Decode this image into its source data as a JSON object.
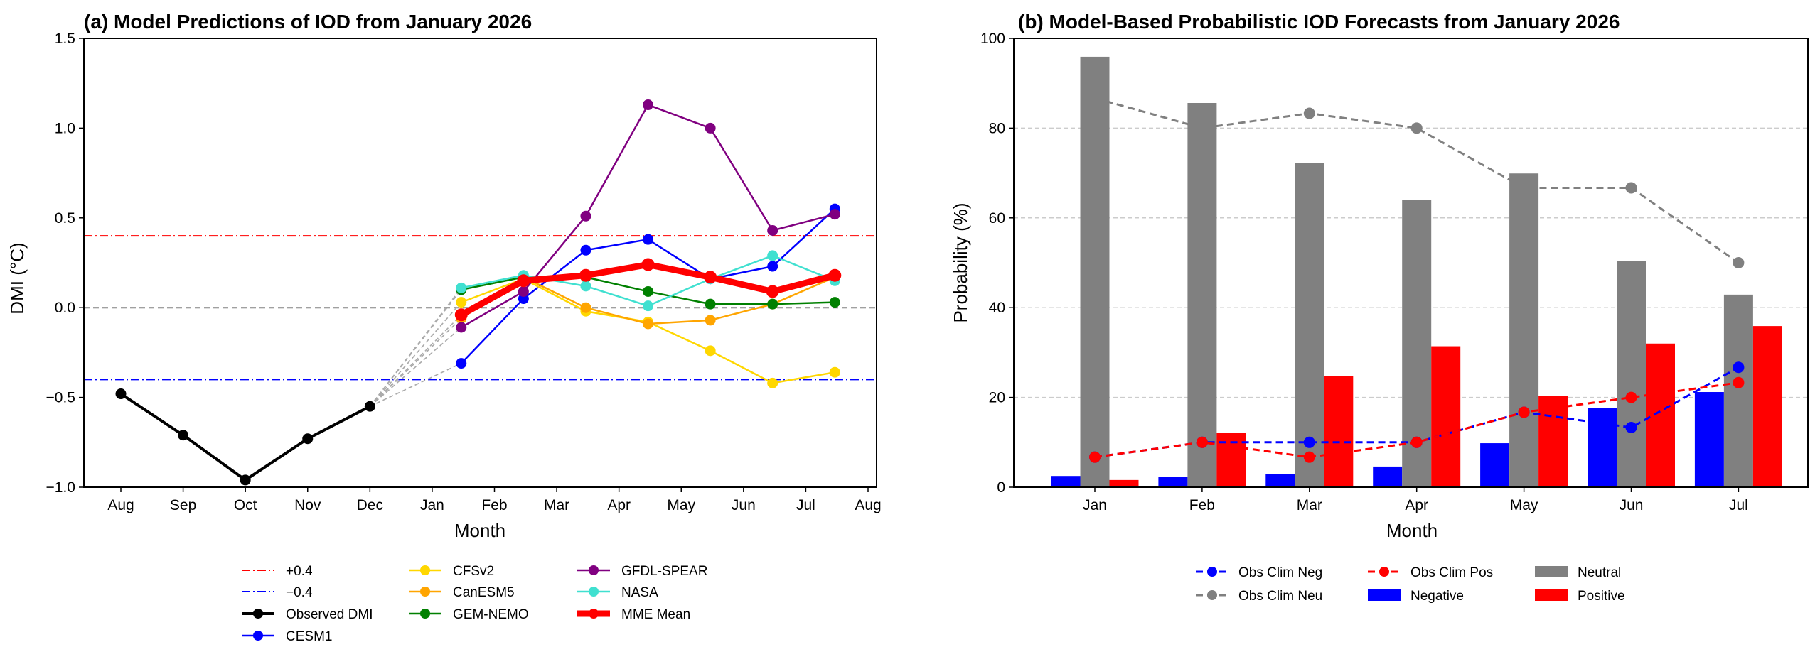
{
  "chart_data": [
    {
      "type": "line",
      "title": "(a) Model Predictions of IOD from January 2026",
      "xlabel": "Month",
      "ylabel": "DMI (°C)",
      "ylim": [
        -1.0,
        1.5
      ],
      "yticks": [
        "−1.0",
        "−0.5",
        "0.0",
        "0.5",
        "1.0",
        "1.5"
      ],
      "ytick_values": [
        -1.0,
        -0.5,
        0.0,
        0.5,
        1.0,
        1.5
      ],
      "xlim": [
        "2025-07-15",
        "2026-08-15"
      ],
      "xticks": [
        "Aug",
        "Sep",
        "Oct",
        "Nov",
        "Dec",
        "Jan",
        "Feb",
        "Mar",
        "Apr",
        "May",
        "Jun",
        "Jul",
        "Aug"
      ],
      "xtick_dates": [
        "2025-08-01",
        "2025-09-01",
        "2025-10-01",
        "2025-11-01",
        "2025-12-01",
        "2026-01-01",
        "2026-02-01",
        "2026-03-01",
        "2026-04-01",
        "2026-05-01",
        "2026-06-01",
        "2026-07-01",
        "2026-08-01"
      ],
      "grid": false,
      "legend_placement": "bottom",
      "reference_lines": [
        {
          "name": "+0.4",
          "y": 0.4,
          "color": "#FF0000",
          "style": "dashdot"
        },
        {
          "name": "−0.4",
          "y": -0.4,
          "color": "#0000FF",
          "style": "dashdot"
        },
        {
          "name": "",
          "y": 0.0,
          "color": "#808080",
          "style": "dashed"
        }
      ],
      "observed": {
        "name": "Observed DMI",
        "color": "#000000",
        "x": [
          "2025-08-01",
          "2025-09-01",
          "2025-10-01",
          "2025-11-01",
          "2025-12-01"
        ],
        "y": [
          -0.48,
          -0.71,
          -0.96,
          -0.73,
          -0.55
        ]
      },
      "forecast_x": [
        "2026-01-15",
        "2026-02-15",
        "2026-03-15",
        "2026-04-15",
        "2026-05-15",
        "2026-06-15",
        "2026-07-15"
      ],
      "series": [
        {
          "name": "CESM1",
          "color": "#0000FF",
          "values": [
            -0.31,
            0.05,
            0.32,
            0.38,
            0.16,
            0.23,
            0.55
          ]
        },
        {
          "name": "CFSv2",
          "color": "#FFD700",
          "values": [
            0.03,
            0.16,
            -0.02,
            -0.08,
            -0.24,
            -0.42,
            -0.36
          ]
        },
        {
          "name": "CanESM5",
          "color": "#FFA500",
          "values": [
            -0.06,
            0.17,
            0.0,
            -0.09,
            -0.07,
            0.02,
            0.17
          ]
        },
        {
          "name": "GEM-NEMO",
          "color": "#008000",
          "values": [
            0.1,
            0.17,
            0.17,
            0.09,
            0.02,
            0.02,
            0.03
          ]
        },
        {
          "name": "GFDL-SPEAR",
          "color": "#800080",
          "values": [
            -0.11,
            0.09,
            0.51,
            1.13,
            1.0,
            0.43,
            0.52
          ]
        },
        {
          "name": "NASA",
          "color": "#40E0D0",
          "values": [
            0.11,
            0.18,
            0.12,
            0.01,
            0.16,
            0.29,
            0.15
          ]
        },
        {
          "name": "MME Mean",
          "color": "#FF0000",
          "values": [
            -0.04,
            0.15,
            0.18,
            0.24,
            0.17,
            0.09,
            0.18
          ]
        }
      ]
    },
    {
      "type": "bar",
      "title": "(b) Model-Based Probabilistic IOD Forecasts from January 2026",
      "xlabel": "Month",
      "ylabel": "Probability (%)",
      "ylim": [
        0,
        100
      ],
      "yticks": [
        "0",
        "20",
        "40",
        "60",
        "80",
        "100"
      ],
      "ytick_values": [
        0,
        20,
        40,
        60,
        80,
        100
      ],
      "grid": "horizontal dashed",
      "legend_placement": "bottom",
      "categories": [
        "Jan",
        "Feb",
        "Mar",
        "Apr",
        "May",
        "Jun",
        "Jul"
      ],
      "series": [
        {
          "name": "Negative",
          "color": "#0000FF",
          "values": [
            2.5,
            2.3,
            3.0,
            4.6,
            9.8,
            17.6,
            21.2
          ]
        },
        {
          "name": "Neutral",
          "color": "#808080",
          "values": [
            95.9,
            85.6,
            72.2,
            64.0,
            69.9,
            50.4,
            42.9
          ]
        },
        {
          "name": "Positive",
          "color": "#FF0000",
          "values": [
            1.6,
            12.1,
            24.8,
            31.4,
            20.3,
            32.0,
            35.9
          ]
        }
      ],
      "lines": [
        {
          "name": "Obs Clim Neg",
          "color": "#0000FF",
          "values": [
            6.7,
            10.0,
            10.0,
            10.0,
            16.7,
            13.3,
            26.7
          ]
        },
        {
          "name": "Obs Clim Neu",
          "color": "#808080",
          "values": [
            86.7,
            80.0,
            83.3,
            80.0,
            66.7,
            66.7,
            50.0
          ]
        },
        {
          "name": "Obs Clim Pos",
          "color": "#FF0000",
          "values": [
            6.7,
            10.0,
            6.7,
            10.0,
            16.7,
            20.0,
            23.3
          ]
        }
      ]
    }
  ]
}
